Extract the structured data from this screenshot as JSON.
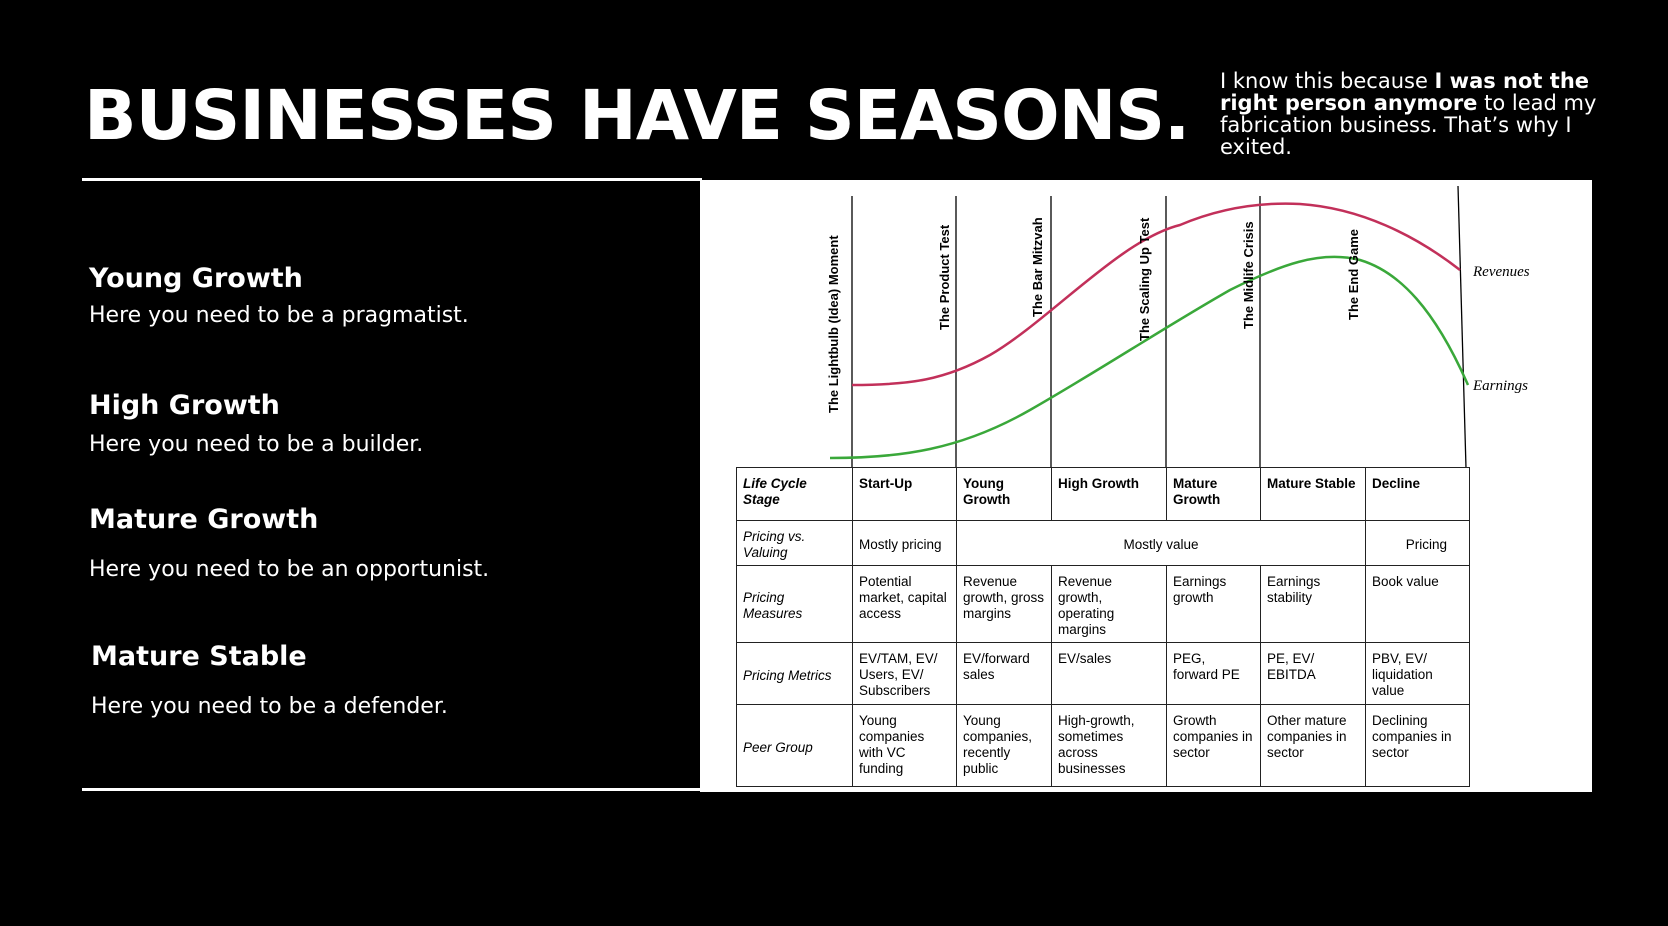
{
  "header": {
    "title": "BUSINESSES HAVE SEASONS.",
    "note_before": "I know this because ",
    "note_bold": "I was not the right person anymore",
    "note_after": " to lead my fabrication business. That’s why I exited."
  },
  "stages": [
    {
      "heading": "Young Growth",
      "text": "Here you need to be a pragmatist."
    },
    {
      "heading": "High Growth",
      "text": "Here you need to be a builder."
    },
    {
      "heading": "Mature Growth",
      "text": "Here you need to be an opportunist."
    },
    {
      "heading": "Mature Stable",
      "text": "Here you need to be a defender."
    }
  ],
  "diagram": {
    "milestones": [
      "The Lightbulb (Idea) Moment",
      "The Product Test",
      "The Bar Mitzvah",
      "The Scaling Up Test",
      "The Midlife Crisis",
      "The End Game"
    ],
    "curves": {
      "revenues_label": "Revenues",
      "earnings_label": "Earnings"
    },
    "colors": {
      "revenues": "#c2305a",
      "earnings": "#3aa83a"
    },
    "table": {
      "row_headers": [
        "Life Cycle Stage",
        "Pricing vs. Valuing",
        "Pricing Measures",
        "Pricing Metrics",
        "Peer Group"
      ],
      "stages": [
        "Start-Up",
        "Young Growth",
        "High Growth",
        "Mature Growth",
        "Mature Stable",
        "Decline"
      ],
      "pricing_vs_valuing": [
        "Mostly pricing",
        "Mostly value",
        "Pricing"
      ],
      "pricing_measures": [
        "Potential market, capital access",
        "Revenue growth, gross margins",
        "Revenue growth, operating margins",
        "Earnings growth",
        "Earnings stability",
        "Book value"
      ],
      "pricing_metrics": [
        "EV/TAM, EV/ Users, EV/ Subscribers",
        "EV/forward sales",
        "EV/sales",
        "PEG, forward PE",
        "PE, EV/ EBITDA",
        "PBV, EV/ liquidation value"
      ],
      "peer_group": [
        "Young companies with VC funding",
        "Young companies, recently public",
        "High-growth, sometimes across businesses",
        "Growth companies in sector",
        "Other mature companies in sector",
        "Declining companies in sector"
      ]
    }
  }
}
